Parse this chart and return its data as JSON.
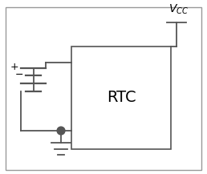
{
  "fig_width": 2.58,
  "fig_height": 2.17,
  "dpi": 100,
  "bg_color": "#ffffff",
  "border_color": "#999999",
  "line_color": "#555555",
  "line_width": 1.3,
  "rtc_label": "RTC",
  "rtc_fontsize": 14,
  "vcc_label": "$V_{CC}$",
  "vcc_fontsize": 10
}
